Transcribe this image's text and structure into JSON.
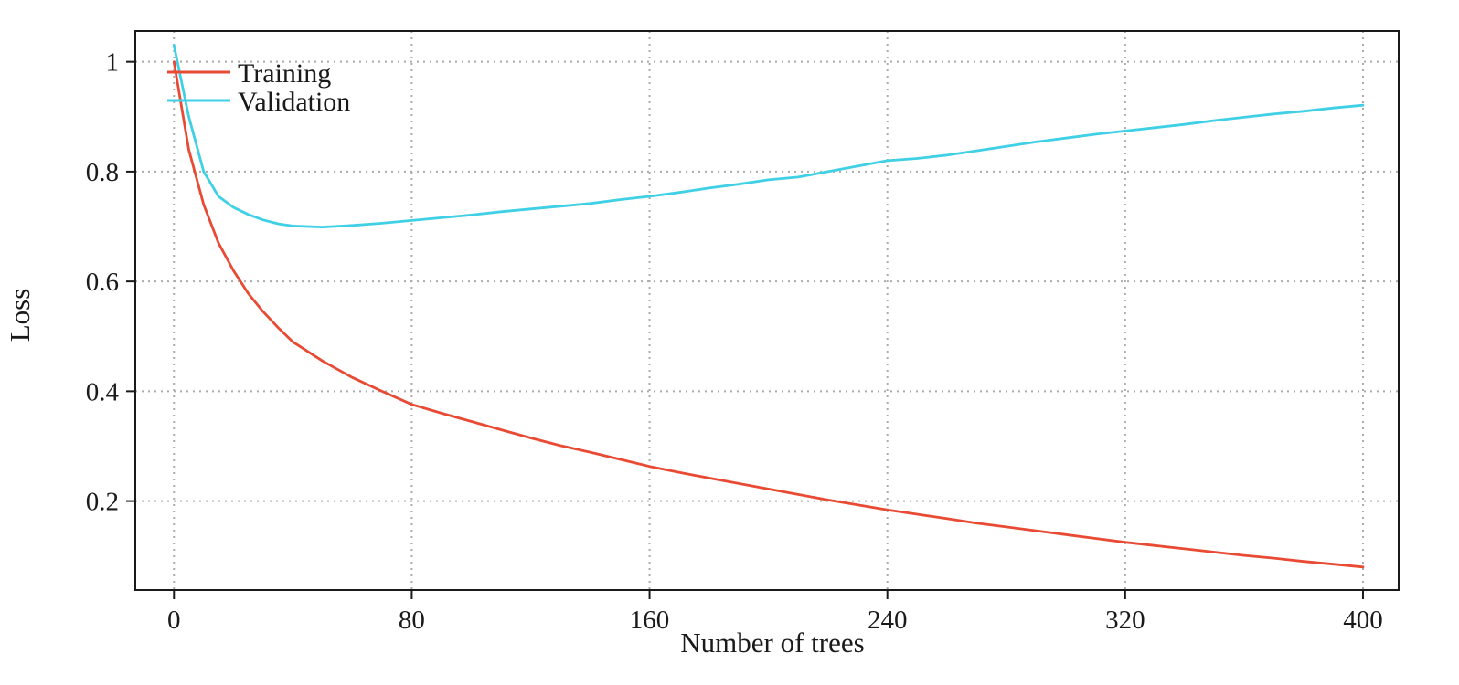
{
  "figure": {
    "background": "#ffffff",
    "frame_color": "#1a1a1a",
    "grid_color": "#ababab",
    "tick_color": "#1a1a1a"
  },
  "chart_data": {
    "type": "line",
    "title": "",
    "xlabel": "Number of trees",
    "ylabel": "Loss",
    "xlim": [
      -13,
      412
    ],
    "ylim": [
      0.038,
      1.056
    ],
    "x_ticks": [
      0,
      80,
      160,
      240,
      320,
      400
    ],
    "x_tick_labels": [
      "0",
      "80",
      "160",
      "240",
      "320",
      "400"
    ],
    "y_ticks": [
      0.2,
      0.4,
      0.6,
      0.8,
      1
    ],
    "y_tick_labels": [
      "0.2",
      "0.4",
      "0.6",
      "0.8",
      "1"
    ],
    "grid": true,
    "grid_style": "dotted",
    "legend_position": "top-left",
    "x": [
      0,
      5,
      10,
      15,
      20,
      25,
      30,
      35,
      40,
      50,
      60,
      70,
      80,
      90,
      100,
      110,
      120,
      130,
      140,
      150,
      160,
      170,
      180,
      190,
      200,
      210,
      220,
      230,
      240,
      250,
      260,
      270,
      280,
      290,
      300,
      310,
      320,
      330,
      340,
      350,
      360,
      370,
      380,
      390,
      400
    ],
    "series": [
      {
        "name": "Training",
        "color": "#e84a34",
        "values": [
          1.0,
          0.84,
          0.74,
          0.67,
          0.62,
          0.578,
          0.545,
          0.516,
          0.49,
          0.455,
          0.425,
          0.4,
          0.376,
          0.36,
          0.345,
          0.33,
          0.315,
          0.301,
          0.289,
          0.276,
          0.263,
          0.252,
          0.242,
          0.232,
          0.222,
          0.212,
          0.202,
          0.193,
          0.184,
          0.176,
          0.168,
          0.16,
          0.153,
          0.146,
          0.139,
          0.132,
          0.125,
          0.119,
          0.113,
          0.107,
          0.101,
          0.096,
          0.09,
          0.085,
          0.08
        ]
      },
      {
        "name": "Validation",
        "color": "#3fd0e6",
        "values": [
          1.03,
          0.9,
          0.8,
          0.755,
          0.735,
          0.722,
          0.712,
          0.705,
          0.701,
          0.699,
          0.702,
          0.706,
          0.711,
          0.716,
          0.721,
          0.727,
          0.732,
          0.737,
          0.742,
          0.749,
          0.755,
          0.762,
          0.77,
          0.777,
          0.785,
          0.79,
          0.8,
          0.81,
          0.82,
          0.824,
          0.83,
          0.838,
          0.846,
          0.854,
          0.861,
          0.868,
          0.874,
          0.88,
          0.886,
          0.893,
          0.899,
          0.905,
          0.91,
          0.916,
          0.921
        ]
      }
    ]
  }
}
